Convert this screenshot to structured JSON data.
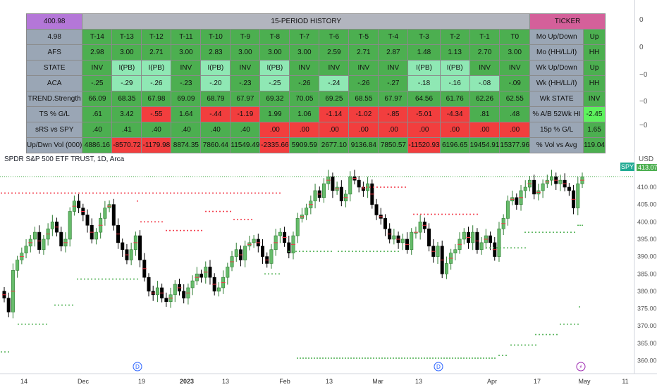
{
  "table": {
    "price": "400.98",
    "history_title": "15-PERIOD HISTORY",
    "ticker_title": "TICKER",
    "corner_value": "4.98",
    "periods": [
      "T-14",
      "T-13",
      "T-12",
      "T-11",
      "T-10",
      "T-9",
      "T-8",
      "T-7",
      "T-6",
      "T-5",
      "T-4",
      "T-3",
      "T-2",
      "T-1",
      "T0"
    ],
    "rows": [
      {
        "label": "AFS",
        "cells": [
          [
            "2.98",
            "g"
          ],
          [
            "3.00",
            "g"
          ],
          [
            "2.71",
            "g"
          ],
          [
            "3.00",
            "g"
          ],
          [
            "2.83",
            "g"
          ],
          [
            "3.00",
            "g"
          ],
          [
            "3.00",
            "g"
          ],
          [
            "3.00",
            "g"
          ],
          [
            "2.59",
            "g"
          ],
          [
            "2.71",
            "g"
          ],
          [
            "2.87",
            "g"
          ],
          [
            "1.48",
            "g"
          ],
          [
            "1.13",
            "g"
          ],
          [
            "2.70",
            "g"
          ],
          [
            "3.00",
            "g"
          ]
        ],
        "tlabel": "Mo (HH/LL/I)",
        "tvalue": "HH",
        "tcolor": "g"
      },
      {
        "label": "STATE",
        "cells": [
          [
            "INV",
            "g"
          ],
          [
            "I(PB)",
            "lg"
          ],
          [
            "I(PB)",
            "lg"
          ],
          [
            "INV",
            "g"
          ],
          [
            "I(PB)",
            "lg"
          ],
          [
            "INV",
            "g"
          ],
          [
            "I(PB)",
            "lg"
          ],
          [
            "INV",
            "g"
          ],
          [
            "INV",
            "g"
          ],
          [
            "INV",
            "g"
          ],
          [
            "INV",
            "g"
          ],
          [
            "I(PB)",
            "lg"
          ],
          [
            "I(PB)",
            "lg"
          ],
          [
            "INV",
            "g"
          ],
          [
            "INV",
            "g"
          ]
        ],
        "tlabel": "Wk Up/Down",
        "tvalue": "Up",
        "tcolor": "g"
      },
      {
        "label": "ACA",
        "cells": [
          [
            "-.25",
            "g"
          ],
          [
            "-.29",
            "lg"
          ],
          [
            "-.26",
            "lg"
          ],
          [
            "-.23",
            "g"
          ],
          [
            "-.20",
            "lg"
          ],
          [
            "-.23",
            "g"
          ],
          [
            "-.25",
            "lg"
          ],
          [
            "-.26",
            "g"
          ],
          [
            "-.24",
            "lg"
          ],
          [
            "-.26",
            "g"
          ],
          [
            "-.27",
            "g"
          ],
          [
            "-.18",
            "lg"
          ],
          [
            "-.16",
            "lg"
          ],
          [
            "-.08",
            "lg"
          ],
          [
            "-.09",
            "g"
          ]
        ],
        "tlabel": "Wk (HH/LL/I)",
        "tvalue": "HH",
        "tcolor": "g"
      },
      {
        "label": "TREND.Strength",
        "cells": [
          [
            "66.09",
            "g"
          ],
          [
            "68.35",
            "g"
          ],
          [
            "67.98",
            "g"
          ],
          [
            "69.09",
            "g"
          ],
          [
            "68.79",
            "g"
          ],
          [
            "67.97",
            "g"
          ],
          [
            "69.32",
            "g"
          ],
          [
            "70.05",
            "g"
          ],
          [
            "69.25",
            "g"
          ],
          [
            "68.55",
            "g"
          ],
          [
            "67.97",
            "g"
          ],
          [
            "64.56",
            "g"
          ],
          [
            "61.76",
            "g"
          ],
          [
            "62.26",
            "g"
          ],
          [
            "62.55",
            "g"
          ]
        ],
        "tlabel": "Wk STATE",
        "tvalue": "INV",
        "tcolor": "g"
      },
      {
        "label": "TS % G/L",
        "cells": [
          [
            ".61",
            "g"
          ],
          [
            "3.42",
            "g"
          ],
          [
            "-.55",
            "r"
          ],
          [
            "1.64",
            "g"
          ],
          [
            "-.44",
            "r"
          ],
          [
            "-1.19",
            "r"
          ],
          [
            "1.99",
            "g"
          ],
          [
            "1.06",
            "g"
          ],
          [
            "-1.14",
            "r"
          ],
          [
            "-1.02",
            "r"
          ],
          [
            "-.85",
            "r"
          ],
          [
            "-5.01",
            "r"
          ],
          [
            "-4.34",
            "r"
          ],
          [
            ".81",
            "g"
          ],
          [
            ".48",
            "g"
          ]
        ],
        "tlabel": "% A/B 52Wk HI",
        "tvalue": "-2.45",
        "tcolor": "bg"
      },
      {
        "label": "sRS vs SPY",
        "cells": [
          [
            ".40",
            "g"
          ],
          [
            ".41",
            "g"
          ],
          [
            ".40",
            "g"
          ],
          [
            ".40",
            "g"
          ],
          [
            ".40",
            "g"
          ],
          [
            ".40",
            "g"
          ],
          [
            ".00",
            "r"
          ],
          [
            ".00",
            "r"
          ],
          [
            ".00",
            "r"
          ],
          [
            ".00",
            "r"
          ],
          [
            ".00",
            "r"
          ],
          [
            ".00",
            "r"
          ],
          [
            ".00",
            "r"
          ],
          [
            ".00",
            "r"
          ],
          [
            ".00",
            "r"
          ]
        ],
        "tlabel": "15p % G/L",
        "tvalue": "1.65",
        "tcolor": "g"
      },
      {
        "label": "Up/Dwn Vol (000)",
        "cells": [
          [
            "4886.16",
            "g"
          ],
          [
            "-8570.72",
            "r"
          ],
          [
            "-1179.98",
            "r"
          ],
          [
            "8874.35",
            "g"
          ],
          [
            "7860.44",
            "g"
          ],
          [
            "11549.49",
            "g"
          ],
          [
            "-2335.66",
            "r"
          ],
          [
            "5909.59",
            "g"
          ],
          [
            "2677.10",
            "g"
          ],
          [
            "9136.84",
            "g"
          ],
          [
            "7850.57",
            "g"
          ],
          [
            "-11520.93",
            "r"
          ],
          [
            "6196.65",
            "g"
          ],
          [
            "19454.91",
            "g"
          ],
          [
            "15377.96",
            "g"
          ]
        ],
        "tlabel": "% Vol vs Avg",
        "tvalue": "119.04",
        "tcolor": "g"
      }
    ],
    "header_tickers": {
      "tlabel": "Mo Up/Down",
      "tvalue": "Up"
    }
  },
  "top_axis_labels": [
    "0",
    "0",
    "−0",
    "−0",
    "−0"
  ],
  "chart": {
    "title": "SPDR S&P 500 ETF TRUST, 1D, Arca",
    "currency": "USD",
    "symbol_badge": "SPY",
    "price_badge": "413.07",
    "y_labels": [
      "410.00",
      "405.00",
      "400.00",
      "395.00",
      "390.00",
      "385.00",
      "380.00",
      "375.00",
      "370.00",
      "365.00",
      "360.00"
    ],
    "x_labels": [
      "14",
      "Dec",
      "19",
      "2023",
      "13",
      "Feb",
      "13",
      "Mar",
      "13",
      "Apr",
      "17",
      "May",
      "11"
    ],
    "event_markers": [
      "D",
      "D",
      "⚡"
    ]
  },
  "colors": {
    "up": "#4caf50",
    "down": "#000000",
    "red_dots": "#f23645",
    "green_dots": "#4caf50"
  }
}
